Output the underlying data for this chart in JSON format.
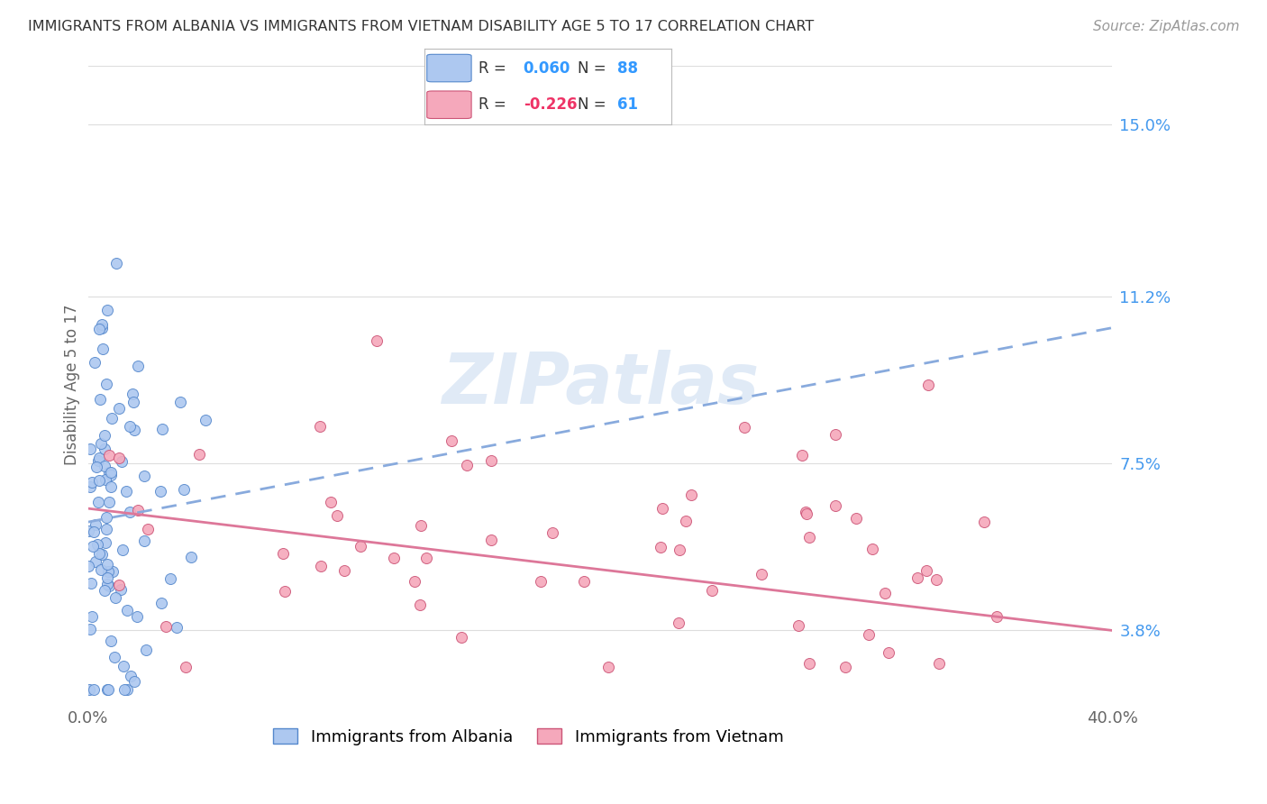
{
  "title": "IMMIGRANTS FROM ALBANIA VS IMMIGRANTS FROM VIETNAM DISABILITY AGE 5 TO 17 CORRELATION CHART",
  "source": "Source: ZipAtlas.com",
  "ylabel": "Disability Age 5 to 17",
  "xlim": [
    0.0,
    0.4
  ],
  "ylim": [
    0.022,
    0.163
  ],
  "ytick_positions": [
    0.038,
    0.075,
    0.112,
    0.15
  ],
  "ytick_labels": [
    "3.8%",
    "7.5%",
    "11.2%",
    "15.0%"
  ],
  "albania_color": "#adc8f0",
  "albania_edge_color": "#5588cc",
  "vietnam_color": "#f5a8bb",
  "vietnam_edge_color": "#cc5577",
  "albania_trendline_color": "#88aadd",
  "vietnam_trendline_color": "#dd7799",
  "albania_R": 0.06,
  "albania_N": 88,
  "vietnam_R": -0.226,
  "vietnam_N": 61,
  "watermark": "ZIPatlas",
  "right_axis_color": "#4499ee",
  "background_color": "#ffffff",
  "grid_color": "#dddddd",
  "legend_text_color": "#333333",
  "legend_R_blue": "#3399ff",
  "legend_R_pink": "#ee3366"
}
